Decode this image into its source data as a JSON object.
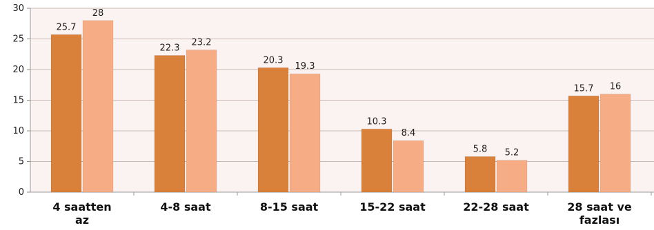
{
  "chart_data": {
    "type": "bar",
    "categories": [
      [
        "4 saatten",
        "az"
      ],
      [
        "4-8 saat"
      ],
      [
        "8-15 saat"
      ],
      [
        "15-22 saat"
      ],
      [
        "22-28 saat"
      ],
      [
        "28 saat ve",
        "fazlası"
      ]
    ],
    "series": [
      {
        "values": [
          25.7,
          22.3,
          20.3,
          10.3,
          5.8,
          15.7
        ],
        "color": "#d9803b"
      },
      {
        "values": [
          28,
          23.2,
          19.3,
          8.4,
          5.2,
          16
        ],
        "color": "#f6ad85"
      }
    ],
    "ylim": [
      0,
      30
    ],
    "yticks": [
      0,
      5,
      10,
      15,
      20,
      25,
      30
    ],
    "grid": true,
    "plot_background": "#fbf3f1",
    "grid_color": "#c9b8b3"
  }
}
